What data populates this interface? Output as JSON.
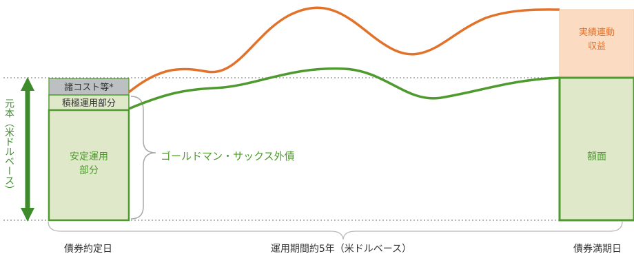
{
  "labels": {
    "principal_axis": "元本（米ドルベース）",
    "costs": "諸コスト等*",
    "active": "積極運用部分",
    "stable_line1": "安定運用",
    "stable_line2": "部分",
    "bond": "ゴールドマン・サックス外債",
    "performance_line1": "実績連動",
    "performance_line2": "収益",
    "face_value": "額面",
    "start_date": "債券約定日",
    "period": "運用期間約5年（米ドルベース）",
    "maturity_date": "債券満期日"
  },
  "colors": {
    "green": "#4e9a2e",
    "green_fill": "#dfe8c9",
    "orange": "#e2722a",
    "orange_fill": "#fbdcc3",
    "gray_fill": "#bcc0c3",
    "arrow_green": "#3d8b2b",
    "text_green": "#4e9a2e",
    "text_orange": "#e2722a",
    "text_dark": "#333333",
    "bracket": "#a8a8a8",
    "dotted": "#8c8c8c"
  }
}
